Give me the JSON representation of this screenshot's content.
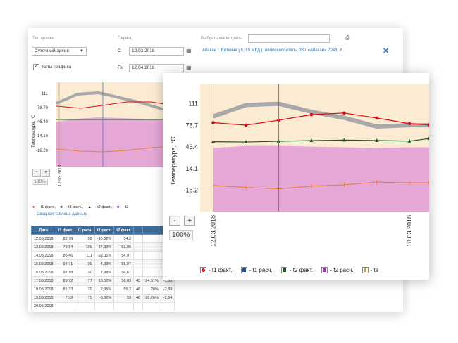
{
  "form": {
    "archive_type_label": "Тип архива",
    "archive_type_value": "Суточный архив",
    "period_label": "Период",
    "from_label": "С",
    "from_value": "12.03.2018",
    "to_label": "По",
    "to_value": "12.04.2018",
    "nodes_label": "Узлы графика",
    "highway_label": "Выбрать магистраль",
    "address": "Абакан г, Витчина ул, 19 МКД (Теплосчислитель, ?КТ «Абакан» 7048, У...",
    "icons": {
      "print": "printer-icon",
      "calendar": "calendar-icon",
      "close": "close-icon",
      "dropdown": "chevron-down-icon"
    }
  },
  "bg_chart": {
    "y_ticks": [
      "111",
      "78.70",
      "46.40",
      "14.10",
      "-18.20"
    ],
    "y_label": "Температура, °С",
    "x_tick": "12.03.2018",
    "zoom": "100%",
    "legend": [
      "- t1 факт.,",
      "- t1 расч.,",
      "- t2 факт.,",
      "- t2"
    ],
    "summary_link": "Сводная таблица данных"
  },
  "table": {
    "headers": [
      "Дата",
      "t1 факт.",
      "t1 расч.",
      "t1 расх.",
      "t2 факт.",
      "",
      "",
      ""
    ],
    "rows": [
      [
        "12.03.2018",
        "82,78",
        "92",
        "-10,02%",
        "54,3",
        "",
        "",
        ""
      ],
      [
        "13.03.2018",
        "79,14",
        "109",
        "-27,39%",
        "53,86",
        "",
        "",
        ""
      ],
      [
        "14.03.2018",
        "86,46",
        "111",
        "-22,11%",
        "54,97",
        "",
        "",
        ""
      ],
      [
        "15.03.2018",
        "94,71",
        "99",
        "-4,33%",
        "55,97",
        "",
        "",
        ""
      ],
      [
        "16.03.2018",
        "97,18",
        "90",
        "7,98%",
        "56,67",
        "",
        "",
        ""
      ],
      [
        "17.03.2018",
        "89,72",
        "77",
        "16,52%",
        "56,03",
        "45",
        "24,51%",
        "-1,88"
      ],
      [
        "18.03.2018",
        "81,33",
        "79",
        "2,95%",
        "55,2",
        "46",
        "20%",
        "-2,88"
      ],
      [
        "19.03.2018",
        "75,9",
        "79",
        "-3,92%",
        "59",
        "46",
        "28,26%",
        "-2,64"
      ],
      [
        "20.03.2018",
        "",
        "",
        "",
        "",
        "",
        "",
        ""
      ]
    ]
  },
  "fg_chart": {
    "y_label": "Температура, °С",
    "zoom": "100%",
    "minus_label": "-",
    "plus_label": "+",
    "legend": [
      {
        "label": "- t1 факт.,",
        "color": "#e30613",
        "shape": "circle"
      },
      {
        "label": "- t1 расч.,",
        "color": "#1f4e8c",
        "shape": "square"
      },
      {
        "label": "- t2 факт.,",
        "color": "#1a5c1a",
        "shape": "triangle"
      },
      {
        "label": "- t2 расч.,",
        "color": "#9b30b0",
        "shape": "star"
      },
      {
        "label": "- ta",
        "color": "#d89b1a",
        "shape": "bar"
      }
    ]
  },
  "chart_data": {
    "type": "line",
    "ylabel": "Температура, °С",
    "y_ticks": [
      111,
      78.7,
      46.4,
      14.1,
      -18.2
    ],
    "x_ticks": [
      "12.03.2018",
      "18.03.2018"
    ],
    "ylim": [
      -50,
      140
    ],
    "x": [
      12.0,
      13.0,
      14.0,
      15.0,
      16.0,
      17.0,
      18.0,
      18.6
    ],
    "series": [
      {
        "name": "t1 факт.",
        "color": "#e30613",
        "values": [
          82.78,
          79.14,
          86.46,
          94.71,
          97.18,
          89.72,
          81.33,
          79.5
        ]
      },
      {
        "name": "t1 расч.",
        "color": "#a8a8a8",
        "values": [
          92,
          109,
          111,
          99,
          90,
          77,
          79,
          79
        ]
      },
      {
        "name": "t2 факт.",
        "color": "#1a5c1a",
        "values": [
          54.3,
          53.86,
          54.97,
          55.97,
          56.67,
          56.03,
          55.2,
          59
        ]
      },
      {
        "name": "t2 расч.",
        "color": "#e4a7d6",
        "values": [
          45,
          48,
          48,
          47,
          46,
          45,
          46,
          46
        ]
      },
      {
        "name": "ta",
        "color": "#e87d3e",
        "values": [
          -11,
          -14,
          -16,
          -12,
          -10,
          -6,
          -7,
          -7
        ]
      }
    ]
  },
  "colors": {
    "plot_bg": "#fbebd3",
    "fill_t2": "#e4a7d6",
    "cursor": "#5577bb",
    "header": "#3d6c9a",
    "link": "#2a6db5"
  }
}
